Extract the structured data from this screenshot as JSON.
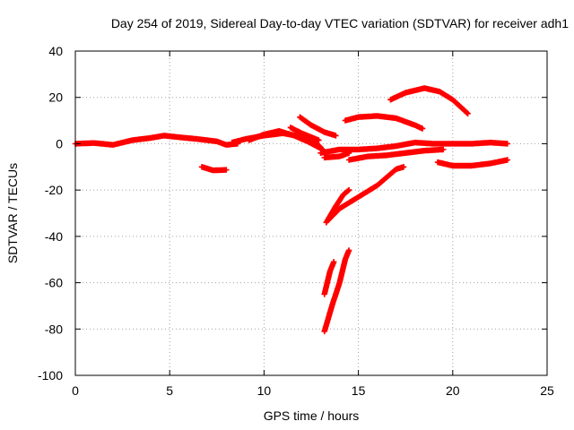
{
  "chart_data": {
    "type": "scatter",
    "title": "Day 254 of 2019, Sidereal Day-to-day VTEC variation (SDTVAR) for receiver adh1",
    "xlabel": "GPS time / hours",
    "ylabel": "SDTVAR / TECUs",
    "xlim": [
      0,
      25
    ],
    "ylim": [
      -100,
      40
    ],
    "xticks": [
      "0",
      "5",
      "10",
      "15",
      "20",
      "25"
    ],
    "yticks": [
      "-100",
      "-80",
      "-60",
      "-40",
      "-20",
      "0",
      "20",
      "40"
    ],
    "grid": true,
    "colors": {
      "series": "#ff0000",
      "grid": "#a0a0a0",
      "axis": "#000000"
    },
    "series": [
      {
        "points": [
          [
            0,
            0
          ],
          [
            1,
            0.3
          ],
          [
            2,
            -0.5
          ],
          [
            3,
            1.5
          ],
          [
            4,
            2.5
          ],
          [
            4.7,
            3.5
          ],
          [
            5.5,
            2.8
          ],
          [
            6.5,
            2
          ],
          [
            7.5,
            1
          ],
          [
            8,
            -0.5
          ],
          [
            8.6,
            0
          ]
        ]
      },
      {
        "points": [
          [
            8.3,
            0.5
          ],
          [
            9,
            2
          ],
          [
            10,
            3.5
          ],
          [
            11,
            4.5
          ],
          [
            12,
            3
          ],
          [
            12.8,
            0
          ],
          [
            13.1,
            -2.5
          ]
        ]
      },
      {
        "points": [
          [
            9.2,
            1.5
          ],
          [
            10,
            4
          ],
          [
            10.8,
            5.5
          ],
          [
            11.6,
            3.5
          ],
          [
            12.3,
            1
          ],
          [
            13,
            -2
          ]
        ]
      },
      {
        "points": [
          [
            11.4,
            7
          ],
          [
            12,
            4.5
          ],
          [
            12.6,
            2.5
          ],
          [
            12.9,
            1.5
          ]
        ]
      },
      {
        "points": [
          [
            6.7,
            -10
          ],
          [
            7.3,
            -11.5
          ],
          [
            8,
            -11.3
          ]
        ]
      },
      {
        "points": [
          [
            13,
            -4
          ],
          [
            14,
            -2.5
          ],
          [
            15,
            -2.5
          ],
          [
            16,
            -2
          ],
          [
            17,
            -1
          ],
          [
            18,
            0.5
          ],
          [
            19,
            0
          ],
          [
            20,
            0
          ],
          [
            21,
            0
          ],
          [
            22,
            0.5
          ],
          [
            22.9,
            0
          ]
        ]
      },
      {
        "points": [
          [
            13.2,
            -6
          ],
          [
            14,
            -5.5
          ],
          [
            14.5,
            -4
          ]
        ]
      },
      {
        "points": [
          [
            14.5,
            -7
          ],
          [
            15.5,
            -5.5
          ],
          [
            16.5,
            -5
          ],
          [
            17.5,
            -4
          ],
          [
            18.5,
            -3
          ],
          [
            19.5,
            -2.5
          ]
        ]
      },
      {
        "points": [
          [
            14.3,
            10
          ],
          [
            15,
            11.5
          ],
          [
            16,
            12
          ],
          [
            17,
            11
          ],
          [
            18,
            8
          ],
          [
            18.4,
            6.5
          ]
        ]
      },
      {
        "points": [
          [
            11.9,
            11.5
          ],
          [
            12.5,
            8
          ],
          [
            13.2,
            5
          ],
          [
            13.8,
            3.5
          ]
        ]
      },
      {
        "points": [
          [
            16.7,
            19
          ],
          [
            17.5,
            22
          ],
          [
            18.5,
            24
          ],
          [
            19.3,
            22.5
          ],
          [
            20,
            19
          ],
          [
            20.8,
            13
          ]
        ]
      },
      {
        "points": [
          [
            19.2,
            -8
          ],
          [
            20,
            -9.5
          ],
          [
            21,
            -9.5
          ],
          [
            22,
            -8.5
          ],
          [
            22.9,
            -7
          ]
        ]
      },
      {
        "points": [
          [
            13.4,
            -33
          ],
          [
            14,
            -28
          ],
          [
            15,
            -23
          ],
          [
            16,
            -18
          ],
          [
            17,
            -11
          ],
          [
            17.4,
            -10
          ]
        ]
      },
      {
        "points": [
          [
            13.3,
            -34
          ],
          [
            13.8,
            -27
          ],
          [
            14.2,
            -22
          ],
          [
            14.5,
            -20
          ]
        ]
      },
      {
        "points": [
          [
            13.2,
            -65
          ],
          [
            13.5,
            -55
          ],
          [
            13.7,
            -51
          ]
        ]
      },
      {
        "points": [
          [
            13.2,
            -81
          ],
          [
            13.6,
            -70
          ],
          [
            14,
            -60
          ],
          [
            14.3,
            -50
          ],
          [
            14.5,
            -46
          ]
        ]
      }
    ]
  }
}
